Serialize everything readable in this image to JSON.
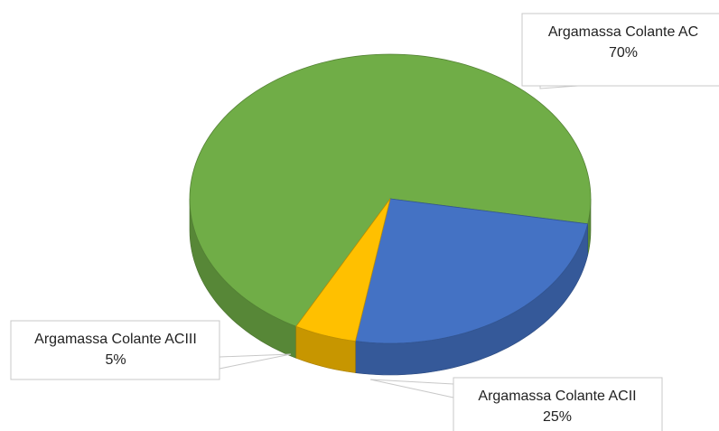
{
  "chart_data": {
    "type": "pie",
    "labels": [
      "Argamassa Colante AC",
      "Argamassa Colante ACII",
      "Argamassa Colante ACIII"
    ],
    "values": [
      70,
      25,
      5
    ],
    "value_labels": [
      "70%",
      "25%",
      "5%"
    ],
    "colors": [
      "#70ad47",
      "#4472c4",
      "#ffc000"
    ]
  }
}
